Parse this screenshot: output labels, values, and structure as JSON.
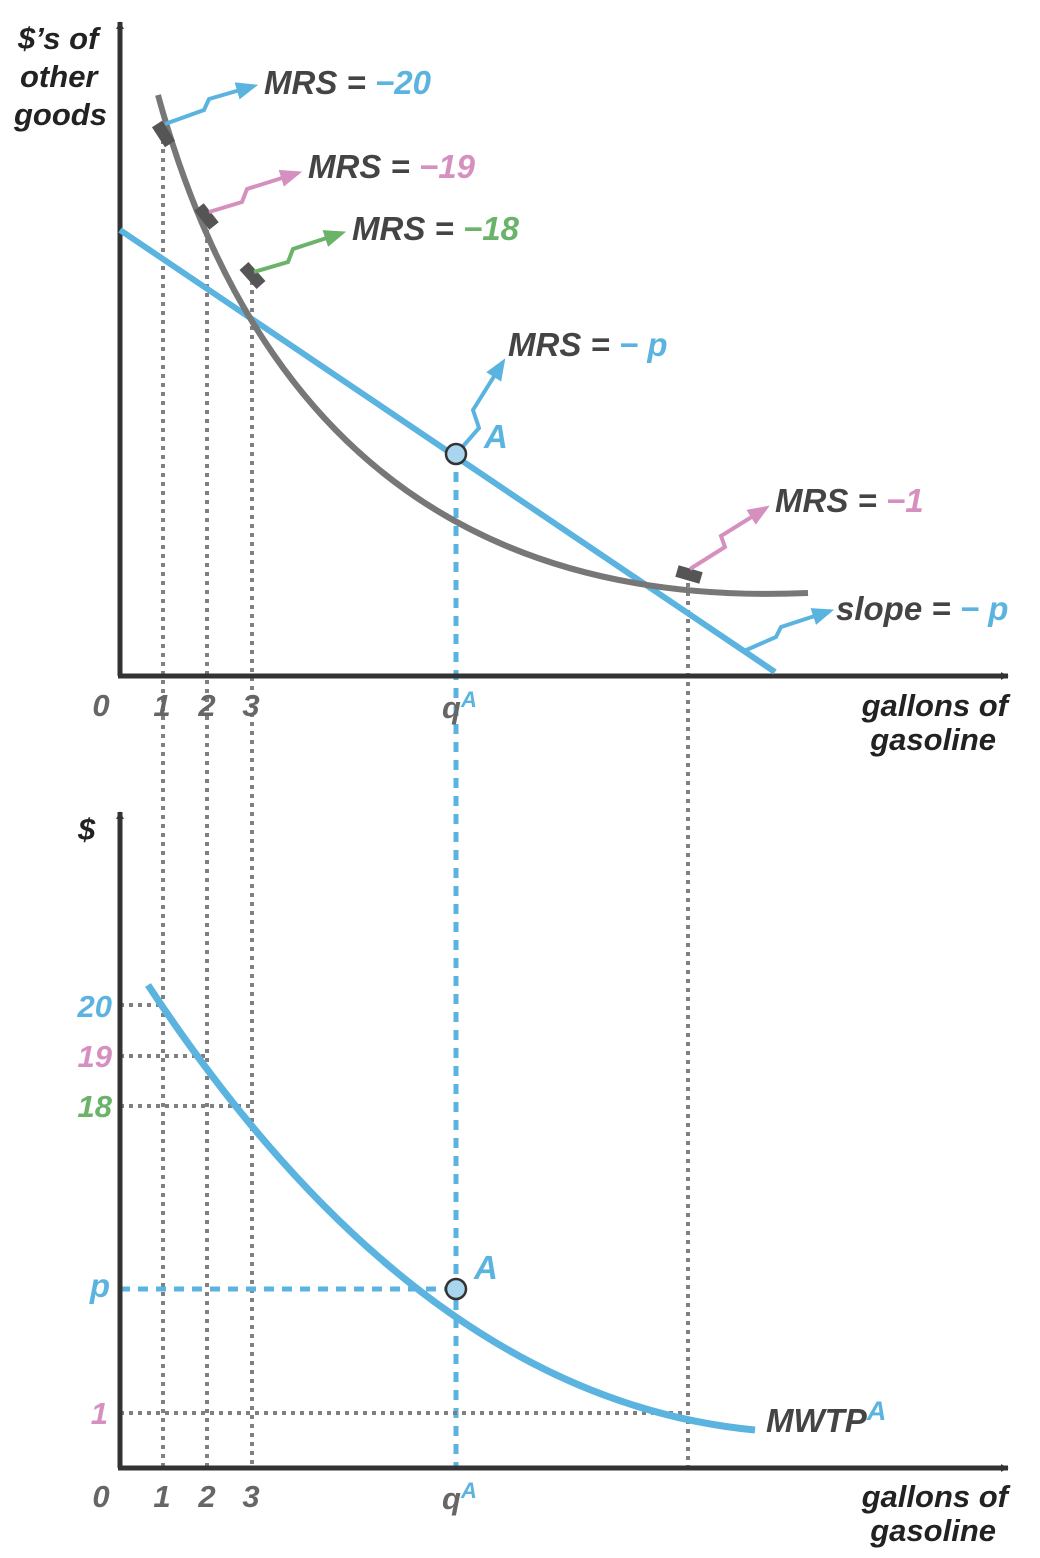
{
  "colors": {
    "axis": "#333333",
    "curve": "#777777",
    "blue": "#5bb3e0",
    "pink": "#d690bf",
    "green": "#6cb36a",
    "text": "#444444",
    "dots": "#808080"
  },
  "top_panel": {
    "y_axis_label": [
      "$’s of",
      "other",
      "goods"
    ],
    "x_axis_label": [
      "gallons of",
      "gasoline"
    ],
    "origin_label": "0",
    "x_ticks": [
      "1",
      "2",
      "3"
    ],
    "x_tick_q": {
      "main": "q",
      "sup": "A"
    },
    "point_label": "A",
    "annotations": [
      {
        "prefix": "MRS = ",
        "value": "−20",
        "value_color": "blue",
        "arrow_color": "blue"
      },
      {
        "prefix": "MRS = ",
        "value": "−19",
        "value_color": "pink",
        "arrow_color": "pink"
      },
      {
        "prefix": "MRS = ",
        "value": "−18",
        "value_color": "green",
        "arrow_color": "green"
      },
      {
        "prefix": "MRS = ",
        "value": "− p",
        "value_color": "blue",
        "arrow_color": "blue"
      },
      {
        "prefix": "MRS = ",
        "value": "−1",
        "value_color": "pink",
        "arrow_color": "pink"
      },
      {
        "prefix": "slope = ",
        "value": "− p",
        "value_color": "blue",
        "arrow_color": "blue"
      }
    ]
  },
  "bottom_panel": {
    "y_axis_label": "$",
    "x_axis_label": [
      "gallons of",
      "gasoline"
    ],
    "origin_label": "0",
    "x_ticks": [
      "1",
      "2",
      "3"
    ],
    "x_tick_q": {
      "main": "q",
      "sup": "A"
    },
    "y_ticks": [
      {
        "label": "20",
        "color": "blue"
      },
      {
        "label": "19",
        "color": "pink"
      },
      {
        "label": "18",
        "color": "green"
      },
      {
        "label": "p",
        "color": "blue"
      },
      {
        "label": "1",
        "color": "pink"
      }
    ],
    "point_label": "A",
    "curve_label": {
      "main": "MWTP",
      "sup": "A"
    }
  }
}
